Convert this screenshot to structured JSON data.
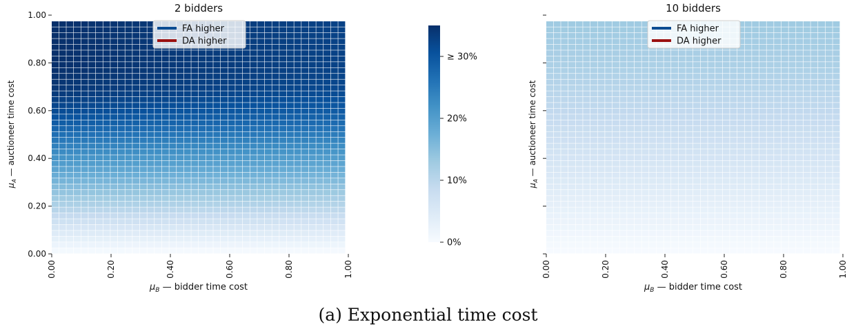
{
  "figure": {
    "caption": "(a) Exponential time cost"
  },
  "colors": {
    "fa_higher": "#0b4c92",
    "da_higher": "#9b1111",
    "scale_low": "#f7fbff",
    "scale_high": "#08306b"
  },
  "colorbar": {
    "ticks": [
      {
        "value": 0,
        "label": "0%"
      },
      {
        "value": 10,
        "label": "10%"
      },
      {
        "value": 20,
        "label": "20%"
      },
      {
        "value": 30,
        "label": "≥ 30%"
      }
    ],
    "range": [
      0,
      35
    ]
  },
  "chart_data": [
    {
      "type": "heatmap",
      "title": "2 bidders",
      "xlabel": "μB — bidder time cost",
      "ylabel": "μA — auctioneer time cost",
      "xlim": [
        0,
        1
      ],
      "ylim": [
        0,
        1
      ],
      "grid_cells": [
        40,
        40
      ],
      "x_ticks": [
        "0.00",
        "0.20",
        "0.40",
        "0.60",
        "0.80",
        "1.00"
      ],
      "y_ticks": [
        "0.00",
        "0.20",
        "0.40",
        "0.60",
        "0.80",
        "1.00"
      ],
      "legend": {
        "position": "top-center",
        "entries": [
          "FA higher",
          "DA higher"
        ]
      },
      "value_unit": "%",
      "value_rows": [
        {
          "mu_A": 0.0,
          "value": 0
        },
        {
          "mu_A": 0.1,
          "value": 5
        },
        {
          "mu_A": 0.2,
          "value": 11
        },
        {
          "mu_A": 0.3,
          "value": 16
        },
        {
          "mu_A": 0.4,
          "value": 21
        },
        {
          "mu_A": 0.5,
          "value": 26
        },
        {
          "mu_A": 0.6,
          "value": 31
        },
        {
          "mu_A": 0.7,
          "value": 34
        },
        {
          "mu_A": 0.8,
          "value": 35
        },
        {
          "mu_A": 1.0,
          "value": 35
        }
      ],
      "x_variation": [
        {
          "mu_B": 0.0,
          "factor": 1.0
        },
        {
          "mu_B": 0.5,
          "factor": 0.96
        },
        {
          "mu_B": 1.0,
          "factor": 0.93
        }
      ]
    },
    {
      "type": "heatmap",
      "title": "10 bidders",
      "xlabel": "μB — bidder time cost",
      "ylabel": "μA — auctioneer time cost",
      "xlim": [
        0,
        1
      ],
      "ylim": [
        0,
        1
      ],
      "grid_cells": [
        40,
        40
      ],
      "x_ticks": [
        "0.00",
        "0.20",
        "0.40",
        "0.60",
        "0.80",
        "1.00"
      ],
      "y_ticks": [
        "",
        "",
        "",
        "",
        "",
        ""
      ],
      "legend": {
        "position": "top-center",
        "entries": [
          "FA higher",
          "DA higher"
        ]
      },
      "value_unit": "%",
      "value_rows": [
        {
          "mu_A": 0.0,
          "value": 0
        },
        {
          "mu_A": 0.2,
          "value": 3
        },
        {
          "mu_A": 0.4,
          "value": 6
        },
        {
          "mu_A": 0.6,
          "value": 9
        },
        {
          "mu_A": 0.8,
          "value": 11.5
        },
        {
          "mu_A": 1.0,
          "value": 13
        }
      ],
      "x_variation": [
        {
          "mu_B": 0.0,
          "factor": 1.0
        },
        {
          "mu_B": 1.0,
          "factor": 1.0
        }
      ]
    }
  ]
}
